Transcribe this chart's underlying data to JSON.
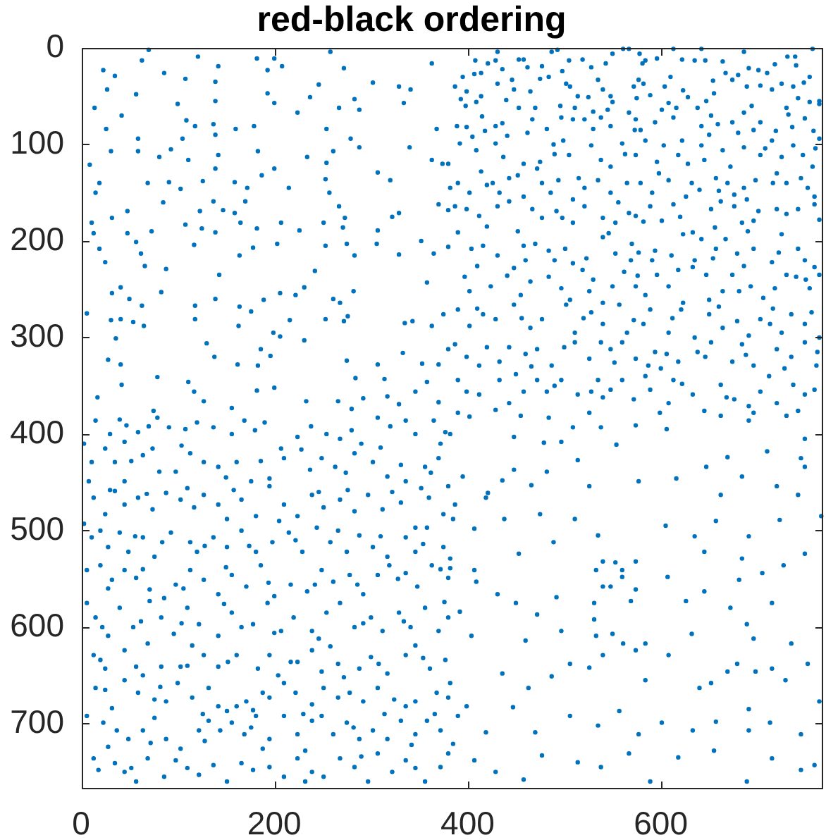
{
  "chart_data": {
    "type": "scatter",
    "title": "red-black ordering",
    "color": "#0072bd",
    "marker": "circle",
    "grid": false,
    "legend": false,
    "xlim": [
      0,
      768
    ],
    "ylim": [
      768,
      0
    ],
    "xticks": [
      0,
      200,
      400,
      600
    ],
    "yticks": [
      0,
      100,
      200,
      300,
      400,
      500,
      600,
      700
    ],
    "x": [
      70,
      121,
      63,
      23,
      35,
      86,
      108,
      142,
      182,
      200,
      208,
      193,
      139,
      246,
      272,
      258,
      302,
      363,
      329,
      341,
      57,
      27,
      14,
      42,
      100,
      109,
      137,
      139,
      160,
      179,
      193,
      200,
      224,
      237,
      254,
      267,
      288,
      283,
      334,
      368,
      26,
      59,
      118,
      105,
      279,
      31,
      9,
      59,
      81,
      93,
      111,
      139,
      142,
      139,
      183,
      200,
      254,
      234,
      261,
      288,
      307,
      320,
      340,
      363,
      374,
      380,
      19,
      15,
      69,
      91,
      103,
      126,
      159,
      172,
      187,
      215,
      253,
      257,
      382,
      48,
      85,
      123,
      137,
      147,
      159,
      170,
      165,
      182,
      207,
      251,
      267,
      273,
      271,
      322,
      329,
      307,
      370,
      380,
      11,
      32,
      48,
      73,
      108,
      125,
      13,
      19,
      25,
      57,
      62,
      66,
      88,
      117,
      139,
      164,
      178,
      203,
      226,
      253,
      275,
      283,
      306,
      329,
      365,
      380,
      352,
      358,
      143,
      6,
      32,
      41,
      50,
      63,
      83,
      118,
      139,
      164,
      176,
      189,
      206,
      222,
      231,
      242,
      261,
      268,
      282,
      276,
      272,
      253,
      335,
      343,
      375,
      363,
      31,
      41,
      54,
      65,
      118,
      163,
      199,
      216,
      36,
      130,
      138,
      28,
      41,
      42,
      79,
      111,
      162,
      183,
      206,
      196,
      186,
      231,
      275,
      284,
      314,
      307,
      333,
      353,
      370,
      380,
      17,
      75,
      117,
      127,
      156,
      182,
      200,
      233,
      266,
      280,
      292,
      317,
      346,
      358,
      370,
      329,
      431,
      487,
      493,
      561,
      567,
      613,
      642,
      686,
      757,
      408,
      421,
      429,
      453,
      458,
      477,
      505,
      519,
      543,
      550,
      578,
      581,
      584,
      596,
      622,
      635,
      646,
      664,
      667,
      691,
      701,
      718,
      731,
      739,
      740,
      754,
      395,
      407,
      414,
      387,
      399,
      393,
      409,
      414,
      431,
      446,
      448,
      465,
      475,
      484,
      502,
      506,
      514,
      525,
      535,
      540,
      548,
      550,
      577,
      582,
      589,
      604,
      608,
      623,
      628,
      647,
      655,
      674,
      689,
      703,
      715,
      725,
      737,
      742,
      754,
      764,
      389,
      399,
      415,
      418,
      429,
      441,
      453,
      467,
      482,
      497,
      511,
      509,
      521,
      538,
      545,
      548,
      567,
      574,
      573,
      579,
      594,
      601,
      613,
      638,
      642,
      659,
      674,
      686,
      696,
      703,
      719,
      732,
      749,
      758,
      764,
      392,
      409,
      429,
      437,
      458,
      475,
      489,
      499,
      505,
      528,
      538,
      548,
      560,
      574,
      584,
      603,
      618,
      628,
      642,
      645,
      664,
      672,
      686,
      703,
      715,
      725,
      737,
      747,
      757,
      764,
      390,
      402,
      414,
      426,
      433,
      443,
      458,
      472,
      477,
      494,
      509,
      521,
      535,
      548,
      565,
      579,
      591,
      608,
      626,
      640,
      657,
      669,
      676,
      686,
      689,
      698,
      720,
      730,
      745,
      759,
      387,
      399,
      412,
      431,
      443,
      467,
      477,
      492,
      509,
      521,
      540,
      553,
      567,
      574,
      589,
      601,
      613,
      633,
      652,
      662,
      676,
      684,
      696,
      701,
      720,
      742,
      759,
      725,
      390,
      404,
      416,
      431,
      441,
      458,
      460,
      470,
      484,
      501,
      509,
      523,
      540,
      553,
      570,
      569,
      577,
      591,
      594,
      611,
      623,
      635,
      642,
      657,
      667,
      679,
      696,
      715,
      742,
      749,
      759,
      397,
      402,
      424,
      455,
      465,
      484,
      497,
      506,
      519,
      526,
      540,
      550,
      562,
      574,
      584,
      596,
      608,
      623,
      633,
      647,
      650,
      664,
      674,
      681,
      693,
      706,
      718,
      730,
      740,
      754,
      764,
      390,
      402,
      416,
      429,
      448,
      465,
      477,
      502,
      511,
      528,
      540,
      557,
      565,
      582,
      589,
      608,
      621,
      635,
      650,
      664,
      679,
      691,
      703,
      713,
      725,
      735,
      749,
      764,
      387,
      399,
      412,
      433,
      443,
      460,
      472,
      487,
      511,
      526,
      538,
      548,
      560,
      574,
      587,
      594,
      606,
      618,
      638,
      652,
      674,
      684,
      696,
      720,
      735,
      749,
      761,
      390,
      399,
      412,
      433,
      443,
      458,
      472,
      482,
      497,
      514,
      528,
      535,
      548,
      560,
      572,
      589,
      608,
      613,
      633,
      645,
      662,
      676,
      691,
      703,
      720,
      737,
      749,
      759,
      390,
      429,
      526,
      599,
      696,
      436,
      462,
      498,
      528,
      572,
      610,
      654,
      680,
      710,
      748,
      398,
      440,
      470,
      496,
      530,
      575,
      616,
      652,
      694,
      730,
      405,
      436,
      462,
      490,
      530,
      563,
      596,
      622,
      650,
      680,
      708,
      736,
      760,
      420,
      452,
      486,
      515,
      556,
      598,
      632,
      660,
      716,
      752,
      420,
      452,
      498,
      546,
      582,
      620,
      656,
      690,
      730,
      764,
      410,
      448,
      490,
      530,
      576,
      618,
      654,
      686,
      722,
      750,
      410,
      456,
      520,
      572,
      612,
      660,
      716,
      756,
      420,
      466,
      500,
      552,
      600,
      646,
      688,
      728,
      762,
      450,
      490,
      540,
      584,
      622,
      668,
      712,
      742,
      15,
      40,
      47,
      59,
      79,
      91,
      108,
      137,
      156,
      169,
      190,
      207,
      224,
      254,
      268,
      290,
      307,
      336,
      346,
      365,
      377,
      3,
      25,
      45,
      11,
      35,
      45,
      64,
      74,
      81,
      98,
      113,
      127,
      142,
      161,
      176,
      195,
      210,
      237,
      249,
      263,
      283,
      302,
      317,
      331,
      356,
      370,
      380,
      8,
      336,
      13,
      25,
      35,
      45,
      59,
      74,
      88,
      103,
      117,
      127,
      142,
      151,
      166,
      181,
      195,
      210,
      224,
      239,
      251,
      268,
      283,
      297,
      312,
      331,
      346,
      360,
      375,
      3,
      11,
      28,
      40,
      49,
      64,
      76,
      93,
      113,
      120,
      137,
      151,
      166,
      181,
      198,
      215,
      229,
      244,
      258,
      275,
      288,
      302,
      317,
      336,
      346,
      358,
      375,
      382,
      6,
      20,
      32,
      45,
      57,
      71,
      86,
      98,
      113,
      127,
      142,
      156,
      171,
      186,
      200,
      217,
      234,
      249,
      261,
      278,
      292,
      307,
      319,
      336,
      348,
      363,
      380,
      6,
      15,
      28,
      40,
      54,
      71,
      83,
      96,
      110,
      122,
      142,
      156,
      166,
      178,
      193,
      207,
      220,
      239,
      254,
      268,
      283,
      300,
      312,
      329,
      341,
      356,
      370,
      380,
      13,
      25,
      45,
      57,
      69,
      83,
      103,
      115,
      127,
      142,
      161,
      183,
      195,
      217,
      224,
      239,
      249,
      266,
      288,
      300,
      317,
      336,
      346,
      361,
      377,
      15,
      25,
      45,
      59,
      76,
      88,
      100,
      115,
      132,
      142,
      151,
      161,
      171,
      188,
      195,
      210,
      222,
      239,
      251,
      266,
      278,
      292,
      307,
      324,
      336,
      346,
      368,
      380,
      6,
      23,
      37,
      49,
      64,
      76,
      88,
      103,
      122,
      132,
      144,
      156,
      169,
      181,
      195,
      210,
      224,
      239,
      249,
      261,
      275,
      288,
      302,
      317,
      331,
      346,
      358,
      372,
      13,
      18,
      35,
      45,
      57,
      69,
      86,
      98,
      122,
      137,
      151,
      166,
      188,
      195,
      210,
      224,
      239,
      251,
      268,
      283,
      297,
      307,
      322,
      336,
      356,
      372,
      380,
      30,
      70,
      120,
      180,
      238,
      280,
      320,
      372,
      52,
      104,
      150,
      186,
      228,
      274,
      310,
      362,
      30,
      68,
      110,
      158,
      205,
      246,
      276,
      322,
      352,
      20,
      56,
      84,
      128,
      174,
      222,
      266,
      310,
      354,
      28,
      64,
      106,
      150,
      194,
      242,
      286,
      328,
      372,
      22,
      62,
      104,
      148,
      200,
      246,
      292,
      334,
      376,
      20,
      64,
      110,
      152,
      204,
      258,
      308,
      354,
      32,
      82,
      126,
      178,
      230,
      272,
      314,
      366,
      28,
      72,
      128,
      176,
      232,
      282,
      342,
      52,
      110,
      178,
      232,
      290,
      346,
      402,
      455,
      484,
      509,
      538,
      574,
      606,
      662,
      691,
      730,
      749,
      382,
      448,
      497,
      554,
      479,
      669,
      710,
      745,
      395,
      421,
      436,
      448,
      466,
      482,
      514,
      526,
      577,
      616,
      647,
      662,
      684,
      720,
      742,
      749,
      387,
      419,
      475,
      385,
      407,
      438,
      453,
      489,
      511,
      535,
      605,
      635,
      657,
      691,
      723,
      766,
      645,
      684,
      382,
      409,
      407,
      540,
      553,
      533,
      540,
      548,
      560,
      560,
      574,
      574,
      569,
      607,
      626,
      645,
      681,
      705,
      727,
      715,
      749,
      431,
      492,
      450,
      472,
      404,
      392,
      531,
      550,
      574,
      584,
      632,
      672,
      689,
      696,
      735,
      497,
      460,
      531,
      533,
      561,
      382,
      399,
      436,
      463,
      487,
      506,
      526,
      540,
      584,
      608,
      640,
      652,
      669,
      679,
      698,
      691,
      715,
      729,
      752,
      764,
      390,
      419,
      447,
      470,
      506,
      535,
      557,
      577,
      601,
      633,
      657,
      691,
      713,
      745,
      385,
      407,
      429,
      458,
      477,
      514,
      538,
      567,
      589,
      618,
      655,
      689,
      715,
      745,
      759
    ],
    "values": [
      2,
      9,
      13,
      23,
      29,
      26,
      32,
      19,
      11,
      11,
      19,
      23,
      35,
      38,
      21,
      4,
      36,
      16,
      40,
      43,
      48,
      43,
      62,
      70,
      58,
      75,
      79,
      55,
      84,
      81,
      47,
      57,
      67,
      51,
      84,
      62,
      64,
      53,
      57,
      84,
      84,
      94,
      81,
      94,
      94,
      107,
      121,
      107,
      113,
      105,
      116,
      90,
      111,
      125,
      107,
      125,
      119,
      113,
      107,
      103,
      129,
      137,
      103,
      116,
      120,
      120,
      140,
      150,
      140,
      139,
      146,
      138,
      139,
      145,
      132,
      145,
      136,
      150,
      145,
      169,
      160,
      169,
      159,
      168,
      171,
      159,
      181,
      187,
      181,
      181,
      164,
      176,
      186,
      175,
      171,
      189,
      162,
      168,
      181,
      176,
      192,
      190,
      183,
      187,
      192,
      208,
      222,
      201,
      213,
      226,
      229,
      204,
      191,
      215,
      207,
      203,
      189,
      205,
      203,
      215,
      203,
      214,
      213,
      206,
      200,
      243,
      235,
      275,
      254,
      248,
      260,
      267,
      253,
      267,
      260,
      268,
      273,
      261,
      254,
      256,
      248,
      231,
      260,
      264,
      252,
      278,
      283,
      281,
      285,
      283,
      276,
      288,
      282,
      281,
      284,
      288,
      281,
      288,
      295,
      282,
      301,
      306,
      320,
      323,
      328,
      349,
      341,
      346,
      328,
      329,
      299,
      319,
      312,
      303,
      324,
      342,
      343,
      328,
      316,
      327,
      328,
      312,
      362,
      376,
      356,
      366,
      373,
      355,
      352,
      366,
      366,
      374,
      363,
      361,
      356,
      346,
      367,
      369,
      4,
      4,
      2,
      1,
      1,
      1,
      1,
      4,
      1,
      13,
      16,
      13,
      12,
      12,
      19,
      13,
      12,
      16,
      6,
      6,
      16,
      13,
      11,
      12,
      13,
      13,
      14,
      26,
      21,
      23,
      17,
      9,
      9,
      18,
      30,
      30,
      27,
      26,
      40,
      45,
      53,
      56,
      50,
      37,
      33,
      43,
      45,
      32,
      30,
      37,
      40,
      50,
      51,
      33,
      43,
      50,
      56,
      33,
      37,
      49,
      40,
      57,
      44,
      51,
      55,
      47,
      33,
      40,
      39,
      43,
      37,
      40,
      52,
      56,
      55,
      81,
      82,
      71,
      86,
      81,
      91,
      62,
      74,
      84,
      72,
      62,
      74,
      74,
      72,
      64,
      81,
      67,
      74,
      85,
      85,
      77,
      64,
      72,
      62,
      81,
      79,
      77,
      67,
      85,
      77,
      86,
      69,
      73,
      86,
      58,
      99,
      106,
      99,
      113,
      120,
      118,
      100,
      96,
      111,
      101,
      116,
      123,
      99,
      111,
      96,
      101,
      111,
      120,
      101,
      116,
      106,
      123,
      103,
      111,
      96,
      113,
      101,
      111,
      123,
      94,
      140,
      150,
      128,
      140,
      150,
      135,
      154,
      125,
      140,
      137,
      157,
      145,
      137,
      150,
      140,
      140,
      150,
      137,
      154,
      147,
      135,
      140,
      152,
      145,
      157,
      137,
      130,
      140,
      135,
      154,
      164,
      167,
      174,
      164,
      159,
      167,
      176,
      169,
      181,
      164,
      176,
      181,
      171,
      174,
      164,
      179,
      162,
      191,
      167,
      159,
      164,
      181,
      179,
      169,
      167,
      167,
      162,
      193,
      191,
      208,
      205,
      215,
      236,
      205,
      220,
      203,
      210,
      208,
      223,
      218,
      196,
      213,
      203,
      220,
      212,
      220,
      210,
      215,
      193,
      220,
      198,
      208,
      198,
      213,
      208,
      222,
      208,
      220,
      227,
      237,
      252,
      247,
      256,
      242,
      237,
      249,
      261,
      230,
      252,
      264,
      247,
      232,
      247,
      256,
      235,
      247,
      264,
      227,
      235,
      261,
      252,
      235,
      252,
      247,
      259,
      249,
      235,
      237,
      249,
      235,
      271,
      288,
      276,
      281,
      266,
      290,
      281,
      266,
      295,
      274,
      286,
      266,
      295,
      286,
      271,
      295,
      271,
      300,
      276,
      290,
      283,
      298,
      281,
      286,
      295,
      276,
      286,
      300,
      307,
      320,
      329,
      325,
      310,
      317,
      312,
      329,
      305,
      322,
      305,
      312,
      305,
      322,
      329,
      315,
      317,
      325,
      315,
      305,
      325,
      307,
      329,
      312,
      320,
      305,
      329,
      344,
      356,
      359,
      344,
      368,
      356,
      344,
      356,
      344,
      359,
      356,
      344,
      354,
      344,
      364,
      354,
      368,
      344,
      359,
      376,
      349,
      364,
      371,
      356,
      368,
      349,
      359,
      354,
      378,
      375,
      378,
      378,
      378,
      22,
      20,
      24,
      20,
      40,
      30,
      34,
      28,
      26,
      36,
      60,
      54,
      62,
      60,
      66,
      52,
      62,
      70,
      60,
      62,
      92,
      78,
      88,
      110,
      84,
      110,
      118,
      96,
      90,
      88,
      104,
      82,
      104,
      142,
      132,
      150,
      135,
      160,
      130,
      140,
      148,
      140,
      145,
      185,
      190,
      176,
      192,
      180,
      175,
      186,
      190,
      172,
      178,
      226,
      228,
      220,
      240,
      236,
      230,
      218,
      226,
      212,
      240,
      270,
      280,
      280,
      282,
      280,
      268,
      270,
      274,
      310,
      330,
      310,
      326,
      332,
      320,
      318,
      332,
      315,
      338,
      350,
      362,
      340,
      348,
      362,
      340,
      376,
      386,
      385,
      391,
      398,
      383,
      393,
      395,
      393,
      400,
      386,
      388,
      415,
      403,
      400,
      405,
      410,
      383,
      386,
      400,
      386,
      398,
      410,
      415,
      408,
      429,
      429,
      449,
      422,
      415,
      439,
      439,
      420,
      429,
      434,
      429,
      449,
      446,
      425,
      437,
      425,
      434,
      420,
      429,
      444,
      432,
      434,
      425,
      454,
      449,
      449,
      466,
      483,
      459,
      473,
      466,
      478,
      461,
      468,
      476,
      463,
      473,
      488,
      468,
      485,
      454,
      473,
      485,
      463,
      476,
      468,
      480,
      463,
      478,
      471,
      497,
      466,
      483,
      493,
      507,
      517,
      502,
      522,
      507,
      527,
      502,
      512,
      522,
      507,
      517,
      500,
      522,
      512,
      502,
      522,
      497,
      512,
      522,
      505,
      517,
      527,
      507,
      522,
      497,
      517,
      529,
      541,
      536,
      551,
      541,
      549,
      561,
      570,
      556,
      541,
      551,
      566,
      546,
      558,
      536,
      568,
      556,
      563,
      541,
      553,
      546,
      566,
      546,
      536,
      544,
      558,
      536,
      549,
      575,
      590,
      609,
      580,
      600,
      573,
      590,
      607,
      580,
      597,
      609,
      585,
      600,
      597,
      575,
      604,
      590,
      604,
      585,
      575,
      600,
      590,
      604,
      585,
      600,
      580,
      604,
      590,
      629,
      643,
      624,
      641,
      617,
      641,
      641,
      619,
      629,
      641,
      629,
      643,
      629,
      636,
      636,
      624,
      646,
      638,
      643,
      631,
      648,
      629,
      619,
      643,
      634,
      663,
      665,
      655,
      668,
      675,
      677,
      658,
      673,
      663,
      682,
      687,
      682,
      677,
      668,
      673,
      658,
      668,
      680,
      663,
      673,
      668,
      677,
      663,
      675,
      682,
      677,
      668,
      673,
      692,
      699,
      707,
      716,
      707,
      694,
      716,
      726,
      707,
      697,
      707,
      699,
      711,
      692,
      716,
      692,
      711,
      697,
      692,
      711,
      699,
      716,
      707,
      716,
      697,
      711,
      697,
      707,
      736,
      748,
      741,
      750,
      760,
      736,
      755,
      738,
      753,
      743,
      760,
      741,
      726,
      745,
      755,
      736,
      750,
      755,
      736,
      745,
      760,
      731,
      750,
      738,
      760,
      745,
      731,
      400,
      392,
      388,
      396,
      392,
      396,
      392,
      410,
      428,
      412,
      445,
      428,
      416,
      440,
      414,
      440,
      458,
      462,
      456,
      458,
      490,
      460,
      458,
      460,
      456,
      500,
      506,
      512,
      516,
      516,
      510,
      500,
      506,
      514,
      560,
      540,
      560,
      538,
      554,
      556,
      556,
      550,
      540,
      600,
      594,
      596,
      576,
      606,
      612,
      596,
      594,
      574,
      634,
      650,
      640,
      636,
      650,
      620,
      638,
      632,
      684,
      662,
      690,
      686,
      690,
      652,
      690,
      690,
      724,
      720,
      718,
      704,
      728,
      704,
      722,
      746,
      746,
      748,
      760,
      734,
      746,
      382,
      381,
      383,
      393,
      393,
      391,
      395,
      381,
      386,
      381,
      405,
      400,
      403,
      408,
      411,
      409,
      424,
      418,
      425,
      444,
      461,
      448,
      437,
      453,
      439,
      427,
      454,
      449,
      446,
      434,
      463,
      444,
      454,
      463,
      434,
      473,
      466,
      483,
      488,
      498,
      488,
      524,
      512,
      488,
      505,
      495,
      506,
      490,
      506,
      489,
      485,
      522,
      529,
      539,
      553,
      541,
      532,
      533,
      541,
      558,
      558,
      541,
      548,
      532,
      561,
      573,
      548,
      573,
      563,
      551,
      544,
      536,
      575,
      524,
      566,
      569,
      575,
      587,
      609,
      584,
      592,
      607,
      624,
      617,
      607,
      580,
      597,
      612,
      617,
      604,
      614,
      575,
      609,
      617,
      658,
      682,
      648,
      663,
      651,
      638,
      642,
      629,
      655,
      629,
      663,
      658,
      646,
      638,
      646,
      685,
      643,
      655,
      638,
      677,
      692,
      709,
      683,
      709,
      692,
      702,
      687,
      711,
      699,
      707,
      698,
      707,
      699,
      711,
      721,
      738,
      750,
      758,
      733,
      740,
      745,
      731,
      760,
      735,
      728,
      760,
      736,
      748,
      743
    ]
  }
}
